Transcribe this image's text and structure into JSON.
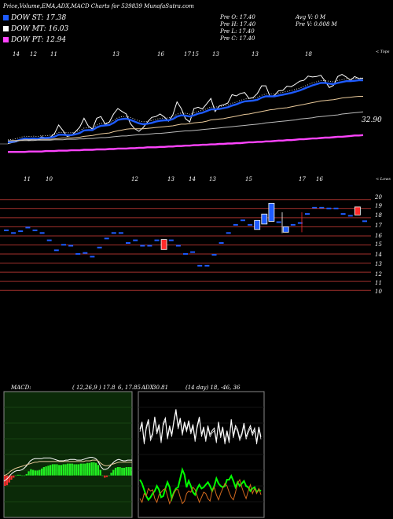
{
  "header": {
    "title": "Price,Volume,EMA,ADX,MACD Charts for 539839 MunafaSutra.com"
  },
  "legend": [
    {
      "label": "DOW ST: 17.38",
      "color": "#1e5bff"
    },
    {
      "label": "DOW MT: 16.03",
      "color": "#ffffff"
    },
    {
      "label": "DOW PT: 12.94",
      "color": "#ff44ff"
    }
  ],
  "ohlc": {
    "o": "Pre   O: 17.40",
    "h": "Pre   H: 17.40",
    "l": "Pre   L: 17.40",
    "c": "Pre   C: 17.40"
  },
  "volume": {
    "avg": "Avg V: 0   M",
    "prev": "Pre   V: 0.008   M"
  },
  "ema_panel": {
    "top_dates": [
      "14",
      "12",
      "11",
      "13",
      "16",
      "17",
      "15",
      "13",
      "13",
      "18"
    ],
    "bottom_dates": [
      "11",
      "10",
      "12",
      "13",
      "14",
      "13",
      "15",
      "17",
      "16"
    ],
    "upper_tag": "< Tops",
    "lower_tag": "< Lows",
    "price_label": "32.90"
  },
  "price_panel": {
    "y_ticks": [
      "20",
      "19",
      "18",
      "17",
      "16",
      "15",
      "14",
      "13",
      "12",
      "11",
      "10"
    ]
  },
  "macd_panel": {
    "title": "MACD:",
    "params": "( 12,26,9 )  17.8",
    "values": "6,  17.85",
    "overlap": "30.81"
  },
  "adx_panel": {
    "title": "ADX",
    "params": "(14 day) 18,  -46,  36"
  },
  "chart_data": [
    {
      "type": "bar",
      "name": "Daily candles",
      "y_ticks": [
        20,
        19,
        18,
        17,
        16,
        15,
        14,
        13,
        12,
        11,
        10
      ],
      "ylim": [
        9.5,
        20.5
      ],
      "candles": [
        {
          "o": 16.7,
          "c": 16.7
        },
        {
          "o": 16.4,
          "c": 16.4
        },
        {
          "o": 16.6,
          "c": 16.6
        },
        {
          "o": 17.0,
          "c": 17.0
        },
        {
          "o": 16.7,
          "c": 16.7
        },
        {
          "o": 16.4,
          "c": 16.4
        },
        {
          "o": 15.6,
          "c": 15.6
        },
        {
          "o": 14.5,
          "c": 14.5
        },
        {
          "o": 15.1,
          "c": 15.1
        },
        {
          "o": 15.0,
          "c": 15.0
        },
        {
          "o": 14.1,
          "c": 14.1
        },
        {
          "o": 14.2,
          "c": 14.2
        },
        {
          "o": 13.8,
          "c": 13.8
        },
        {
          "o": 14.8,
          "c": 14.8
        },
        {
          "o": 15.8,
          "c": 15.8
        },
        {
          "o": 16.4,
          "c": 16.4
        },
        {
          "o": 16.4,
          "c": 16.4
        },
        {
          "o": 15.3,
          "c": 15.3
        },
        {
          "o": 15.6,
          "c": 15.6
        },
        {
          "o": 15.0,
          "c": 15.0
        },
        {
          "o": 15.0,
          "c": 15.0
        },
        {
          "o": 15.6,
          "c": 15.6
        },
        {
          "o": 15.6,
          "c": 14.5
        },
        {
          "o": 15.6,
          "c": 15.6
        },
        {
          "o": 15.0,
          "c": 15.0
        },
        {
          "o": 14.1,
          "c": 14.1
        },
        {
          "o": 14.3,
          "c": 14.3
        },
        {
          "o": 12.8,
          "c": 12.8
        },
        {
          "o": 12.8,
          "c": 12.8
        },
        {
          "o": 14.0,
          "c": 14.0
        },
        {
          "o": 15.3,
          "c": 15.3
        },
        {
          "o": 16.4,
          "c": 16.4
        },
        {
          "o": 17.3,
          "c": 17.3
        },
        {
          "o": 17.8,
          "c": 17.8
        },
        {
          "o": 17.3,
          "c": 17.3
        },
        {
          "o": 16.7,
          "c": 17.7
        },
        {
          "o": 17.3,
          "c": 18.4
        },
        {
          "o": 17.6,
          "c": 19.6
        },
        {
          "o": 17.6,
          "c": 17.6
        },
        {
          "o": 16.4,
          "c": 17.0
        },
        {
          "o": 17.3,
          "c": 17.3
        },
        {
          "o": 17.5,
          "c": 17.5
        },
        {
          "o": 18.5,
          "c": 18.5
        },
        {
          "o": 19.2,
          "c": 19.2
        },
        {
          "o": 19.2,
          "c": 19.2
        },
        {
          "o": 19.1,
          "c": 19.1
        },
        {
          "o": 19.1,
          "c": 19.1
        },
        {
          "o": 18.5,
          "c": 18.5
        },
        {
          "o": 18.3,
          "c": 18.3
        },
        {
          "o": 19.2,
          "c": 18.3
        },
        {
          "o": 17.7,
          "c": 17.7
        }
      ]
    },
    {
      "type": "line",
      "name": "EMA panel",
      "series": [
        {
          "color": "#ffffff",
          "values": [
            27.0,
            27.2,
            27.4,
            27.9,
            28.3,
            27.7,
            28.2,
            28.0,
            28.6,
            28.3,
            28.5,
            29.3,
            31.4,
            30.1,
            28.7,
            28.9,
            29.8,
            30.9,
            33.0,
            31.2,
            30.4,
            33.0,
            33.4,
            31.6,
            32.1,
            34.0,
            35.3,
            34.6,
            34.0,
            31.7,
            30.5,
            29.9,
            30.8,
            32.1,
            33.2,
            33.4,
            34.0,
            33.3,
            32.3,
            33.8,
            36.9,
            35.3,
            32.9,
            32.1,
            35.3,
            35.6,
            35.2,
            36.4,
            37.7,
            34.6,
            35.9,
            36.2,
            36.6,
            38.6,
            38.3,
            38.9,
            39.1,
            37.7,
            37.9,
            38.9,
            40.7,
            40.7,
            38.1,
            38.4,
            39.5,
            39.6,
            40.6,
            40.5,
            41.1,
            41.8,
            42.0,
            43.0,
            42.8,
            42.9,
            43.2,
            41.8,
            40.3,
            40.8,
            42.9,
            43.4,
            42.8,
            42.0,
            42.9,
            42.4,
            42.5
          ]
        },
        {
          "color": "#1e5bff",
          "values": [
            27.3,
            27.4,
            27.6,
            27.9,
            28.2,
            28.1,
            28.2,
            28.1,
            28.3,
            28.3,
            28.4,
            28.6,
            29.1,
            29.1,
            29.0,
            29.0,
            29.2,
            29.5,
            30.1,
            30.2,
            30.2,
            30.8,
            31.2,
            31.3,
            31.4,
            31.9,
            32.6,
            32.8,
            32.9,
            32.6,
            32.2,
            31.8,
            31.6,
            31.7,
            31.9,
            32.2,
            32.4,
            32.5,
            32.5,
            32.8,
            33.4,
            33.7,
            33.6,
            33.4,
            33.7,
            34.1,
            34.3,
            34.7,
            35.1,
            35.1,
            35.2,
            35.4,
            35.6,
            36.0,
            36.3,
            36.7,
            37.0,
            37.1,
            37.2,
            37.4,
            37.9,
            38.2,
            38.2,
            38.2,
            38.4,
            38.6,
            38.8,
            39.0,
            39.3,
            39.6,
            40.0,
            40.4,
            40.8,
            41.1,
            41.4,
            41.4,
            41.2,
            41.1,
            41.4,
            41.6,
            41.8,
            41.8,
            41.9,
            42.0,
            42.0
          ]
        },
        {
          "color": "#e9c99a",
          "values": [
            27.6,
            27.7,
            27.7,
            27.8,
            27.9,
            27.9,
            27.9,
            27.9,
            28.0,
            28.0,
            28.0,
            28.1,
            28.2,
            28.3,
            28.3,
            28.3,
            28.4,
            28.5,
            28.7,
            28.8,
            28.9,
            29.1,
            29.3,
            29.4,
            29.5,
            29.8,
            30.0,
            30.2,
            30.4,
            30.5,
            30.5,
            30.5,
            30.5,
            30.6,
            30.7,
            30.8,
            30.9,
            31.0,
            31.1,
            31.2,
            31.4,
            31.6,
            31.6,
            31.7,
            31.9,
            32.0,
            32.1,
            32.3,
            32.6,
            32.7,
            32.8,
            32.9,
            33.1,
            33.3,
            33.5,
            33.7,
            33.9,
            34.0,
            34.2,
            34.4,
            34.6,
            34.8,
            35.0,
            35.1,
            35.3,
            35.4,
            35.5,
            35.7,
            35.9,
            36.1,
            36.3,
            36.5,
            36.7,
            36.9,
            37.1,
            37.2,
            37.3,
            37.4,
            37.6,
            37.8,
            37.9,
            38.0,
            38.1,
            38.2,
            38.2
          ]
        },
        {
          "color": "#bbbbbb",
          "values": [
            27.6,
            27.6,
            27.6,
            27.7,
            27.7,
            27.7,
            27.7,
            27.8,
            27.8,
            27.8,
            27.8,
            27.9,
            27.9,
            27.9,
            28.0,
            28.0,
            28.0,
            28.1,
            28.1,
            28.2,
            28.2,
            28.3,
            28.4,
            28.4,
            28.5,
            28.6,
            28.7,
            28.8,
            28.8,
            28.9,
            29.0,
            29.1,
            29.1,
            29.2,
            29.3,
            29.4,
            29.4,
            29.5,
            29.6,
            29.7,
            29.8,
            29.9,
            30.0,
            30.0,
            30.1,
            30.2,
            30.3,
            30.4,
            30.5,
            30.6,
            30.7,
            30.8,
            30.9,
            31.0,
            31.1,
            31.2,
            31.3,
            31.4,
            31.5,
            31.6,
            31.7,
            31.9,
            32.0,
            32.1,
            32.2,
            32.3,
            32.4,
            32.5,
            32.6,
            32.8,
            32.9,
            33.0,
            33.1,
            33.3,
            33.4,
            33.5,
            33.6,
            33.7,
            33.8,
            34.0,
            34.1,
            34.2,
            34.3,
            34.4,
            34.5
          ]
        },
        {
          "color": "#ff44ff",
          "values": [
            25.0,
            25.0,
            25.0,
            25.0,
            25.0,
            25.1,
            25.1,
            25.1,
            25.1,
            25.2,
            25.2,
            25.2,
            25.3,
            25.3,
            25.3,
            25.4,
            25.4,
            25.4,
            25.5,
            25.5,
            25.5,
            25.6,
            25.6,
            25.6,
            25.7,
            25.7,
            25.8,
            25.8,
            25.8,
            25.9,
            25.9,
            26.0,
            26.0,
            26.1,
            26.1,
            26.1,
            26.2,
            26.2,
            26.3,
            26.3,
            26.4,
            26.4,
            26.5,
            26.5,
            26.6,
            26.6,
            26.7,
            26.7,
            26.8,
            26.8,
            26.9,
            26.9,
            27.0,
            27.0,
            27.1,
            27.1,
            27.2,
            27.3,
            27.3,
            27.4,
            27.4,
            27.5,
            27.5,
            27.6,
            27.7,
            27.7,
            27.8,
            27.8,
            27.9,
            28.0,
            28.0,
            28.1,
            28.2,
            28.2,
            28.3,
            28.4,
            28.4,
            28.5,
            28.6,
            28.6,
            28.7,
            28.8,
            28.9,
            28.9,
            29.0
          ]
        }
      ],
      "ylim": [
        20,
        48
      ]
    },
    {
      "type": "bar",
      "name": "MACD",
      "histogram": [
        -1.5,
        -1.4,
        -1.0,
        -0.6,
        -0.3,
        0.0,
        0.1,
        0.1,
        0.0,
        0.0,
        0.2,
        0.6,
        0.9,
        0.8,
        0.7,
        0.7,
        0.8,
        1.0,
        1.2,
        1.3,
        1.4,
        1.5,
        1.6,
        1.6,
        1.6,
        1.5,
        1.5,
        1.6,
        1.6,
        1.7,
        1.7,
        1.7,
        1.6,
        1.6,
        1.6,
        1.7,
        1.7,
        1.7,
        1.8,
        1.8,
        1.9,
        1.9,
        1.8,
        1.5,
        0.8,
        0.0,
        -0.3,
        -0.2,
        0.0,
        0.4,
        0.8,
        1.1,
        1.2,
        1.2,
        1.1,
        1.1,
        1.2,
        1.2,
        1.2
      ],
      "series": [
        {
          "color": "#ffffff",
          "values": [
            -0.8,
            -0.6,
            -0.3,
            0.1,
            0.4,
            0.6,
            0.7,
            0.7,
            0.8,
            1.0,
            1.3,
            1.7,
            2.1,
            2.3,
            2.4,
            2.4,
            2.4,
            2.4,
            2.5,
            2.5,
            2.5,
            2.5,
            2.4,
            2.3,
            2.2,
            2.1,
            2.1,
            2.1,
            2.2,
            2.2,
            2.3,
            2.3,
            2.3,
            2.2,
            2.2,
            2.2,
            2.3,
            2.4,
            2.5,
            2.6,
            2.6,
            2.5,
            2.3,
            1.8,
            1.2,
            0.9,
            0.9,
            1.0,
            1.3,
            1.7,
            2.0,
            2.2,
            2.3,
            2.2,
            2.1,
            2.1,
            2.2,
            2.2,
            2.2
          ]
        },
        {
          "color": "#e9c99a",
          "values": [
            0.0,
            0.1,
            0.3,
            0.6,
            0.8,
            1.0,
            1.1,
            1.2,
            1.3,
            1.4,
            1.5,
            1.6,
            1.7,
            1.8,
            1.9,
            1.9,
            2.0,
            2.0,
            2.0,
            2.0,
            2.0,
            2.0,
            2.0,
            2.0,
            2.0,
            2.0,
            2.0,
            2.0,
            2.0,
            2.0,
            2.0,
            2.0,
            2.0,
            2.0,
            2.0,
            2.0,
            2.0,
            2.1,
            2.1,
            2.1,
            2.2,
            2.2,
            2.2,
            2.0,
            1.7,
            1.5,
            1.4,
            1.4,
            1.5,
            1.6,
            1.7,
            1.8,
            1.9,
            1.9,
            1.9,
            1.9,
            1.9,
            1.9,
            1.9
          ]
        }
      ],
      "ylim": [
        -6,
        12
      ]
    },
    {
      "type": "line",
      "name": "ADX",
      "series": [
        {
          "color": "#ffffff",
          "values": [
            70,
            76,
            60,
            72,
            78,
            63,
            67,
            80,
            68,
            74,
            61,
            75,
            79,
            64,
            73,
            66,
            77,
            86,
            72,
            79,
            67,
            76,
            70,
            77,
            68,
            74,
            62,
            73,
            80,
            66,
            72,
            62,
            73,
            66,
            69,
            71,
            61,
            76,
            65,
            72,
            60,
            69,
            61,
            78,
            65,
            73,
            70,
            63,
            67,
            75,
            64,
            69,
            73,
            67,
            71,
            60,
            72,
            64
          ]
        },
        {
          "color": "#00ff00",
          "values": [
            30,
            27,
            22,
            17,
            14,
            16,
            19,
            21,
            25,
            22,
            16,
            17,
            23,
            28,
            24,
            15,
            20,
            23,
            24,
            31,
            38,
            34,
            24,
            29,
            25,
            20,
            18,
            23,
            26,
            23,
            24,
            26,
            28,
            25,
            21,
            25,
            31,
            27,
            25,
            24,
            25,
            30,
            30,
            33,
            29,
            24,
            28,
            25,
            27,
            29,
            25,
            24,
            21,
            23,
            24,
            20,
            22,
            21
          ]
        },
        {
          "color": "#d2691e",
          "values": [
            15,
            12,
            19,
            17,
            23,
            21,
            22,
            15,
            12,
            18,
            20,
            22,
            23,
            17,
            11,
            15,
            19,
            22,
            22,
            16,
            11,
            13,
            19,
            21,
            20,
            24,
            22,
            17,
            12,
            16,
            20,
            19,
            15,
            13,
            21,
            24,
            18,
            14,
            19,
            23,
            27,
            25,
            20,
            16,
            14,
            20,
            27,
            30,
            24,
            19,
            15,
            21,
            26,
            19,
            23,
            19,
            23,
            18
          ]
        }
      ],
      "ylim": [
        0,
        100
      ]
    }
  ]
}
